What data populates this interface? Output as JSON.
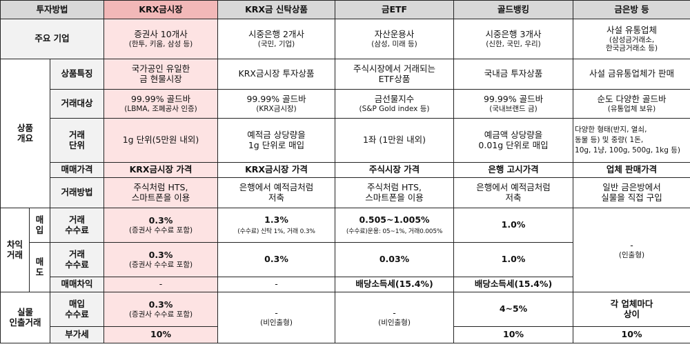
{
  "header": {
    "method": "투자방법",
    "krx": "KRX금시장",
    "krx_trust": "KRX금 신탁상품",
    "gold_etf": "금ETF",
    "gold_banking": "골드뱅킹",
    "gold_shop": "금은방 등"
  },
  "row_labels": {
    "major_companies": "주요 기업",
    "product_overview": "상품\n개요",
    "features": "상품특징",
    "trade_target": "거래대상",
    "trade_unit": "거래\n단위",
    "trade_price": "매매가격",
    "trade_method": "거래방법",
    "gain_trade": "차익\n거래",
    "buy": "매\n입",
    "sell": "매\n도",
    "trade_fee_buy": "거래\n수수료",
    "trade_fee_sell": "거래\n수수료",
    "trade_gain": "매매차익",
    "physical_withdrawal": "실물\n인출거래",
    "buy_fee": "매입\n수수료",
    "vat": "부가세"
  },
  "major_companies": {
    "krx": {
      "main": "증권사 10개사",
      "sub": "(한투, 키움, 삼성 등)"
    },
    "krx_trust": {
      "main": "시중은행 2개사",
      "sub": "(국민, 기업)"
    },
    "gold_etf": {
      "main": "자산운용사",
      "sub": "(삼성, 미래 등)"
    },
    "gold_banking": {
      "main": "시중은행 3개사",
      "sub": "(신한, 국민, 우리)"
    },
    "gold_shop": {
      "main": "사설 유통업체",
      "sub": "(삼성금거래소,\n한국금거래소 등)"
    }
  },
  "features": {
    "krx": "국가공인 유일한\n금 현물시장",
    "krx_trust": "KRX금시장 투자상품",
    "gold_etf": "주식시장에서 거래되는\nETF상품",
    "gold_banking": "국내금 투자상품",
    "gold_shop": "사설 금유통업체가 판매"
  },
  "trade_target": {
    "krx": {
      "main": "99.99% 골드바",
      "sub": "(LBMA, 조폐공사 인증)"
    },
    "krx_trust": {
      "main": "99.99% 골드바",
      "sub": "(KRX금시장)"
    },
    "gold_etf": {
      "main": "금선물지수",
      "sub": "(S&P Gold index 등)"
    },
    "gold_banking": {
      "main": "99.99% 골드바",
      "sub": "(국내브랜드 금)"
    },
    "gold_shop": {
      "main": "순도 다양한 골드바",
      "sub": "(유통업체 보유)"
    }
  },
  "trade_unit": {
    "krx": "1g 단위(5만원 내외)",
    "krx_trust": "예적금 상당량을\n1g 단위로 매입",
    "gold_etf": "1좌 (1만원 내외)",
    "gold_banking": "예금액 상당량을\n0.01g 단위로 매입",
    "gold_shop": "다양한 형태(반지, 열쇠,\n동물 등) 및 중량( 1돈,\n10g, 1냥, 100g, 500g, 1kg 등)"
  },
  "trade_price": {
    "krx": "KRX금시장 가격",
    "krx_trust": "KRX금시장 가격",
    "gold_etf": "주식시장 가격",
    "gold_banking": "은행 고시가격",
    "gold_shop": "업체 판매가격"
  },
  "trade_method": {
    "krx": "주식처럼 HTS,\n스마트폰을 이용",
    "krx_trust": "은행에서 예적금처럼\n저축",
    "gold_etf": "주식처럼 HTS,\n스마트폰을 이용",
    "gold_banking": "은행에서 예적금처럼\n저축",
    "gold_shop": "일반 금은방에서\n실물을 직접 구입"
  },
  "buy_fee_row": {
    "krx": {
      "main": "0.3%",
      "sub": "(증권사 수수료 포함)"
    },
    "krx_trust": {
      "main": "1.3%",
      "sub": "(수수료) 신탁 1%, 거래 0.3%"
    },
    "gold_etf": {
      "main": "0.505~1.005%",
      "sub": "(수수료)운용: 05~1%, 거래0.005%"
    },
    "gold_banking": {
      "main": "1.0%"
    },
    "gold_shop": {
      "main": "-",
      "sub": "(인출형)"
    }
  },
  "sell_fee_row": {
    "krx": {
      "main": "0.3%",
      "sub": "(증권사 수수료 포함)"
    },
    "krx_trust": "0.3%",
    "gold_etf": "0.03%",
    "gold_banking": "1.0%"
  },
  "trade_gain_row": {
    "krx": "-",
    "krx_trust": "-",
    "gold_etf": "배당소득세(15.4%)",
    "gold_banking": "배당소득세(15.4%)"
  },
  "withdraw_buy_fee_row": {
    "krx": {
      "main": "0.3%",
      "sub": "(증권사 수수료 포함)"
    },
    "krx_trust": {
      "main": "-",
      "sub": "(비인출형)"
    },
    "gold_etf": {
      "main": "-",
      "sub": "(비인출형)"
    },
    "gold_banking": "4~5%",
    "gold_shop": "각 업체마다\n상이"
  },
  "vat_row": {
    "krx": "10%",
    "gold_banking": "10%",
    "gold_shop": "10%"
  }
}
